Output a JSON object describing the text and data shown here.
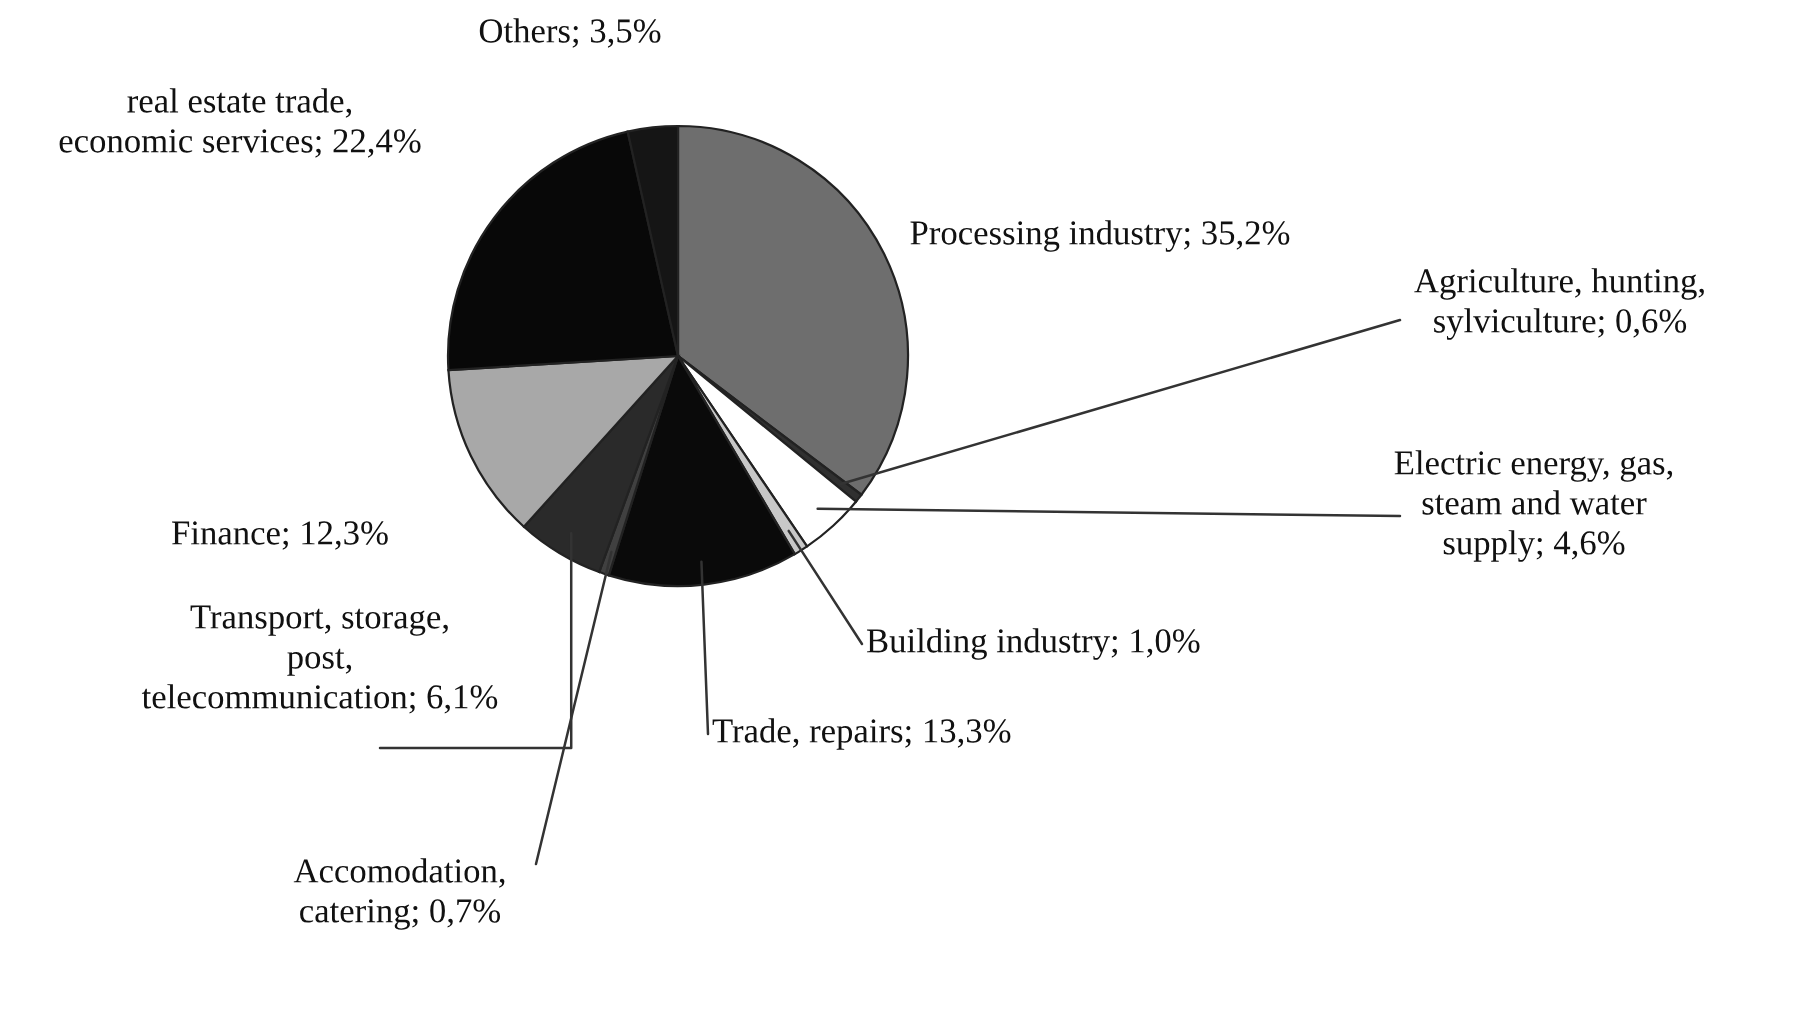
{
  "chart_data": {
    "type": "pie",
    "categories": [
      "Processing industry",
      "Agriculture, hunting,\nsylviculture",
      "Electric energy, gas,\nsteam and water\nsupply",
      "Building industry",
      "Trade, repairs",
      "Accomodation,\ncatering",
      "Transport, storage,\npost,\ntelecommunication",
      "Finance",
      "real estate trade,\neconomic services",
      "Others"
    ],
    "values": [
      35.2,
      0.6,
      4.6,
      1.0,
      13.3,
      0.7,
      6.1,
      12.3,
      22.4,
      3.5
    ],
    "value_labels": [
      "35,2%",
      "0,6%",
      "4,6%",
      "1,0%",
      "13,3%",
      "0,7%",
      "6,1%",
      "12,3%",
      "22,4%",
      "3,5%"
    ],
    "colors": [
      "#6e6e6e",
      "#303030",
      "#ffffff",
      "#c8c8c8",
      "#0a0a0a",
      "#404040",
      "#2a2a2a",
      "#a8a8a8",
      "#080808",
      "#151515"
    ]
  }
}
